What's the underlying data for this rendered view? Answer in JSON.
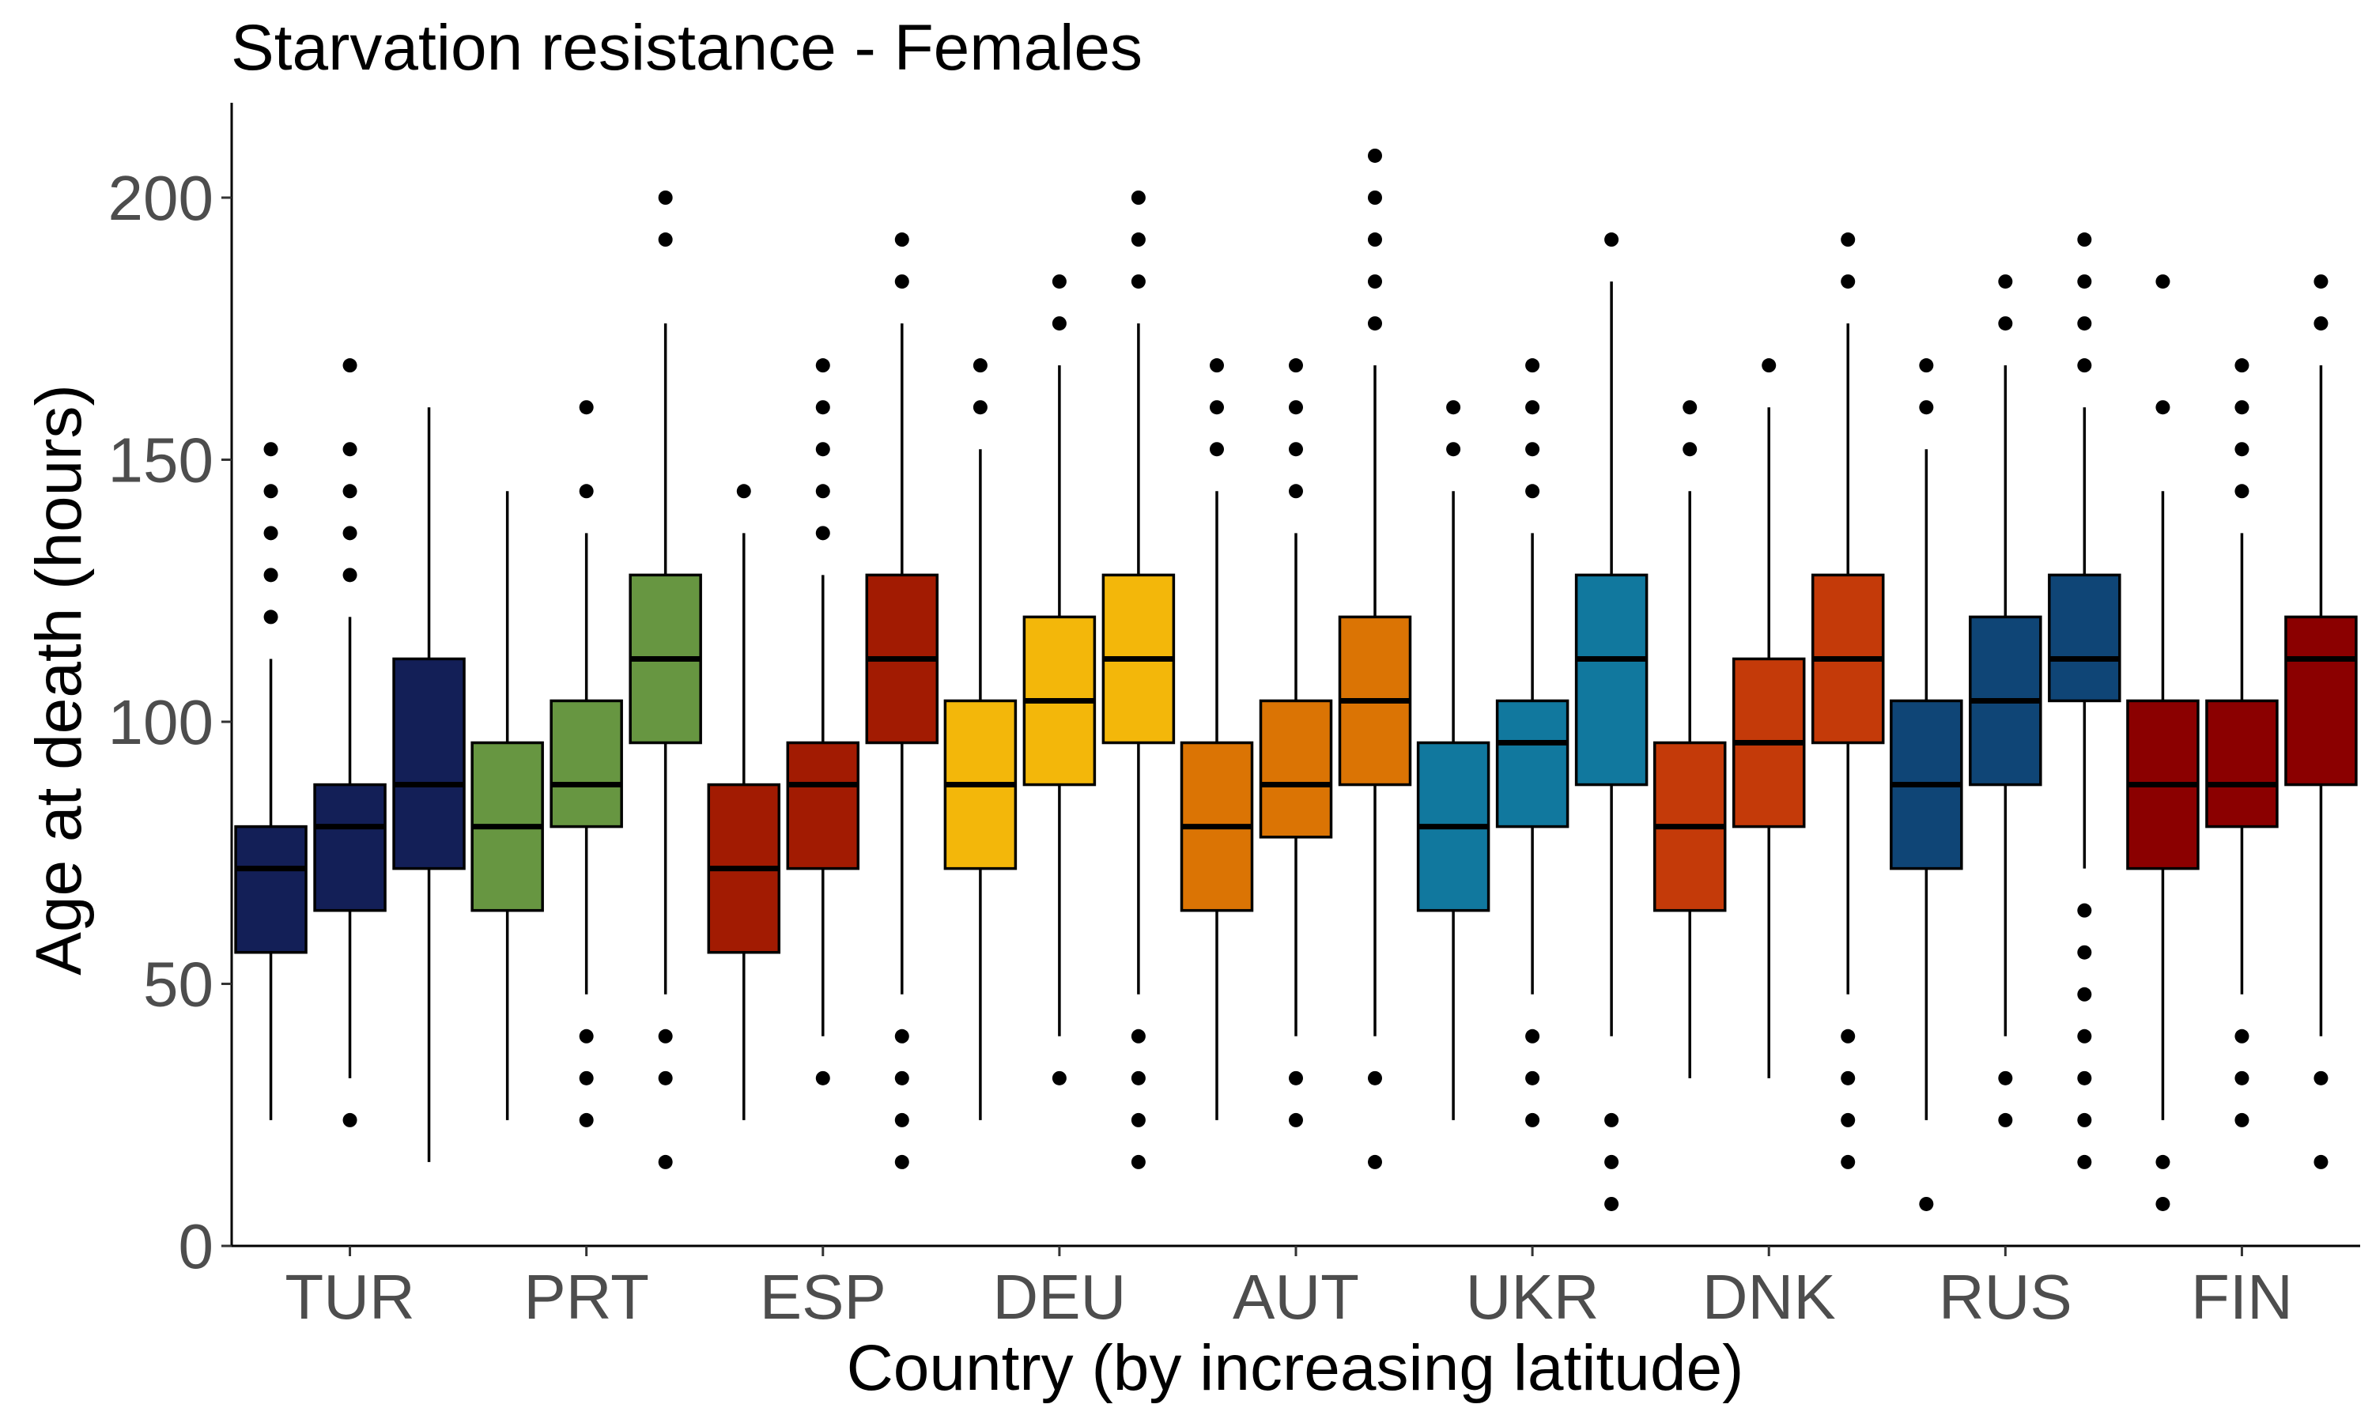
{
  "chart_data": {
    "type": "boxplot",
    "title": "Starvation resistance - Females",
    "xlabel": "Country (by increasing latitude)",
    "ylabel": "Age at death (hours)",
    "ylim": [
      0,
      218
    ],
    "yticks": [
      0,
      50,
      100,
      150,
      200
    ],
    "grid": false,
    "legend": "none",
    "groups": [
      {
        "name": "TUR",
        "color": "#131f57",
        "boxes": [
          {
            "q1": 56,
            "median": 72,
            "q3": 80,
            "low": 24,
            "high": 112,
            "outliers": [
              120,
              128,
              136,
              144,
              152
            ]
          },
          {
            "q1": 64,
            "median": 80,
            "q3": 88,
            "low": 32,
            "high": 120,
            "outliers": [
              24,
              128,
              136,
              144,
              152,
              168
            ]
          },
          {
            "q1": 72,
            "median": 88,
            "q3": 112,
            "low": 16,
            "high": 160,
            "outliers": []
          }
        ]
      },
      {
        "name": "PRT",
        "color": "#679641",
        "boxes": [
          {
            "q1": 64,
            "median": 80,
            "q3": 96,
            "low": 24,
            "high": 144,
            "outliers": []
          },
          {
            "q1": 80,
            "median": 88,
            "q3": 104,
            "low": 48,
            "high": 136,
            "outliers": [
              24,
              32,
              40,
              144,
              160
            ]
          },
          {
            "q1": 96,
            "median": 112,
            "q3": 128,
            "low": 48,
            "high": 176,
            "outliers": [
              16,
              32,
              40,
              192,
              200
            ]
          }
        ]
      },
      {
        "name": "ESP",
        "color": "#a21b02",
        "boxes": [
          {
            "q1": 56,
            "median": 72,
            "q3": 88,
            "low": 24,
            "high": 136,
            "outliers": [
              144
            ]
          },
          {
            "q1": 72,
            "median": 88,
            "q3": 96,
            "low": 40,
            "high": 128,
            "outliers": [
              32,
              136,
              144,
              152,
              160,
              168
            ]
          },
          {
            "q1": 96,
            "median": 112,
            "q3": 128,
            "low": 48,
            "high": 176,
            "outliers": [
              16,
              24,
              32,
              40,
              184,
              192
            ]
          }
        ]
      },
      {
        "name": "DEU",
        "color": "#f3b70a",
        "boxes": [
          {
            "q1": 72,
            "median": 88,
            "q3": 104,
            "low": 24,
            "high": 152,
            "outliers": [
              160,
              168
            ]
          },
          {
            "q1": 88,
            "median": 104,
            "q3": 120,
            "low": 40,
            "high": 168,
            "outliers": [
              32,
              176,
              184
            ]
          },
          {
            "q1": 96,
            "median": 112,
            "q3": 128,
            "low": 48,
            "high": 176,
            "outliers": [
              16,
              24,
              32,
              40,
              184,
              192,
              200
            ]
          }
        ]
      },
      {
        "name": "AUT",
        "color": "#db7404",
        "boxes": [
          {
            "q1": 64,
            "median": 80,
            "q3": 96,
            "low": 24,
            "high": 144,
            "outliers": [
              152,
              160,
              168
            ]
          },
          {
            "q1": 78,
            "median": 88,
            "q3": 104,
            "low": 40,
            "high": 136,
            "outliers": [
              24,
              32,
              144,
              152,
              160,
              168
            ]
          },
          {
            "q1": 88,
            "median": 104,
            "q3": 120,
            "low": 40,
            "high": 168,
            "outliers": [
              16,
              32,
              176,
              184,
              192,
              200,
              208
            ]
          }
        ]
      },
      {
        "name": "UKR",
        "color": "#11789e",
        "boxes": [
          {
            "q1": 64,
            "median": 80,
            "q3": 96,
            "low": 24,
            "high": 144,
            "outliers": [
              152,
              160
            ]
          },
          {
            "q1": 80,
            "median": 96,
            "q3": 104,
            "low": 48,
            "high": 136,
            "outliers": [
              24,
              32,
              40,
              144,
              152,
              160,
              168
            ]
          },
          {
            "q1": 88,
            "median": 112,
            "q3": 128,
            "low": 40,
            "high": 184,
            "outliers": [
              8,
              16,
              24,
              192
            ]
          }
        ]
      },
      {
        "name": "DNK",
        "color": "#c43a09",
        "boxes": [
          {
            "q1": 64,
            "median": 80,
            "q3": 96,
            "low": 32,
            "high": 144,
            "outliers": [
              152,
              160
            ]
          },
          {
            "q1": 80,
            "median": 96,
            "q3": 112,
            "low": 32,
            "high": 160,
            "outliers": [
              168
            ]
          },
          {
            "q1": 96,
            "median": 112,
            "q3": 128,
            "low": 48,
            "high": 176,
            "outliers": [
              16,
              24,
              32,
              40,
              184,
              192
            ]
          }
        ]
      },
      {
        "name": "RUS",
        "color": "#0f4576",
        "boxes": [
          {
            "q1": 72,
            "median": 88,
            "q3": 104,
            "low": 24,
            "high": 152,
            "outliers": [
              8,
              160,
              168
            ]
          },
          {
            "q1": 88,
            "median": 104,
            "q3": 120,
            "low": 40,
            "high": 168,
            "outliers": [
              24,
              32,
              176,
              184
            ]
          },
          {
            "q1": 104,
            "median": 112,
            "q3": 128,
            "low": 72,
            "high": 160,
            "outliers": [
              16,
              24,
              32,
              40,
              48,
              56,
              64,
              168,
              176,
              184,
              192
            ]
          }
        ]
      },
      {
        "name": "FIN",
        "color": "#8b0000",
        "boxes": [
          {
            "q1": 72,
            "median": 88,
            "q3": 104,
            "low": 24,
            "high": 144,
            "outliers": [
              8,
              16,
              160,
              184
            ]
          },
          {
            "q1": 80,
            "median": 88,
            "q3": 104,
            "low": 48,
            "high": 136,
            "outliers": [
              24,
              32,
              40,
              144,
              152,
              160,
              168
            ]
          },
          {
            "q1": 88,
            "median": 112,
            "q3": 120,
            "low": 40,
            "high": 168,
            "outliers": [
              16,
              32,
              176,
              184
            ]
          }
        ]
      }
    ]
  }
}
